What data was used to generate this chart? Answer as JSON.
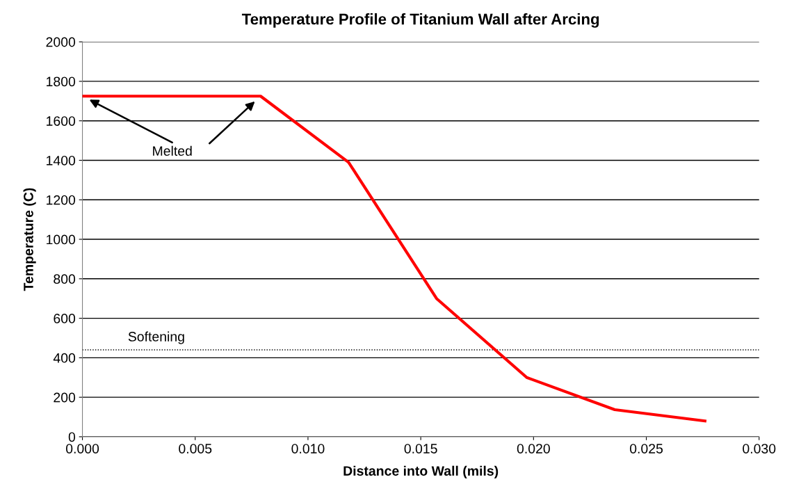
{
  "chart_data": {
    "type": "line",
    "title": "Temperature Profile of Titanium Wall after Arcing",
    "xlabel": "Distance into Wall (mils)",
    "ylabel": "Temperature (C)",
    "x": [
      0,
      0.0079,
      0.0118,
      0.0157,
      0.0197,
      0.0236,
      0.0276
    ],
    "series": [
      {
        "color": "#ff0000",
        "values": [
          1725,
          1725,
          1390,
          700,
          300,
          137,
          80
        ]
      }
    ],
    "xlim": [
      0,
      0.03
    ],
    "xticks": [
      {
        "value": 0,
        "label": "0.000"
      },
      {
        "value": 0.005,
        "label": "0.005"
      },
      {
        "value": 0.01,
        "label": "0.010"
      },
      {
        "value": 0.015,
        "label": "0.015"
      },
      {
        "value": 0.02,
        "label": "0.020"
      },
      {
        "value": 0.025,
        "label": "0.025"
      },
      {
        "value": 0.03,
        "label": "0.030"
      }
    ],
    "ylim": [
      0,
      2000
    ],
    "yticks": [
      0,
      200,
      400,
      600,
      800,
      1000,
      1200,
      1400,
      1600,
      1800,
      2000
    ],
    "grid": "y",
    "marker": "none",
    "line_style": "solid",
    "legend": false,
    "ref_lines": [
      {
        "axis": "y",
        "value": 440,
        "label": "Softening",
        "color": "#000000",
        "line_style": "dotted"
      }
    ],
    "annotations": [
      "Melted"
    ]
  }
}
